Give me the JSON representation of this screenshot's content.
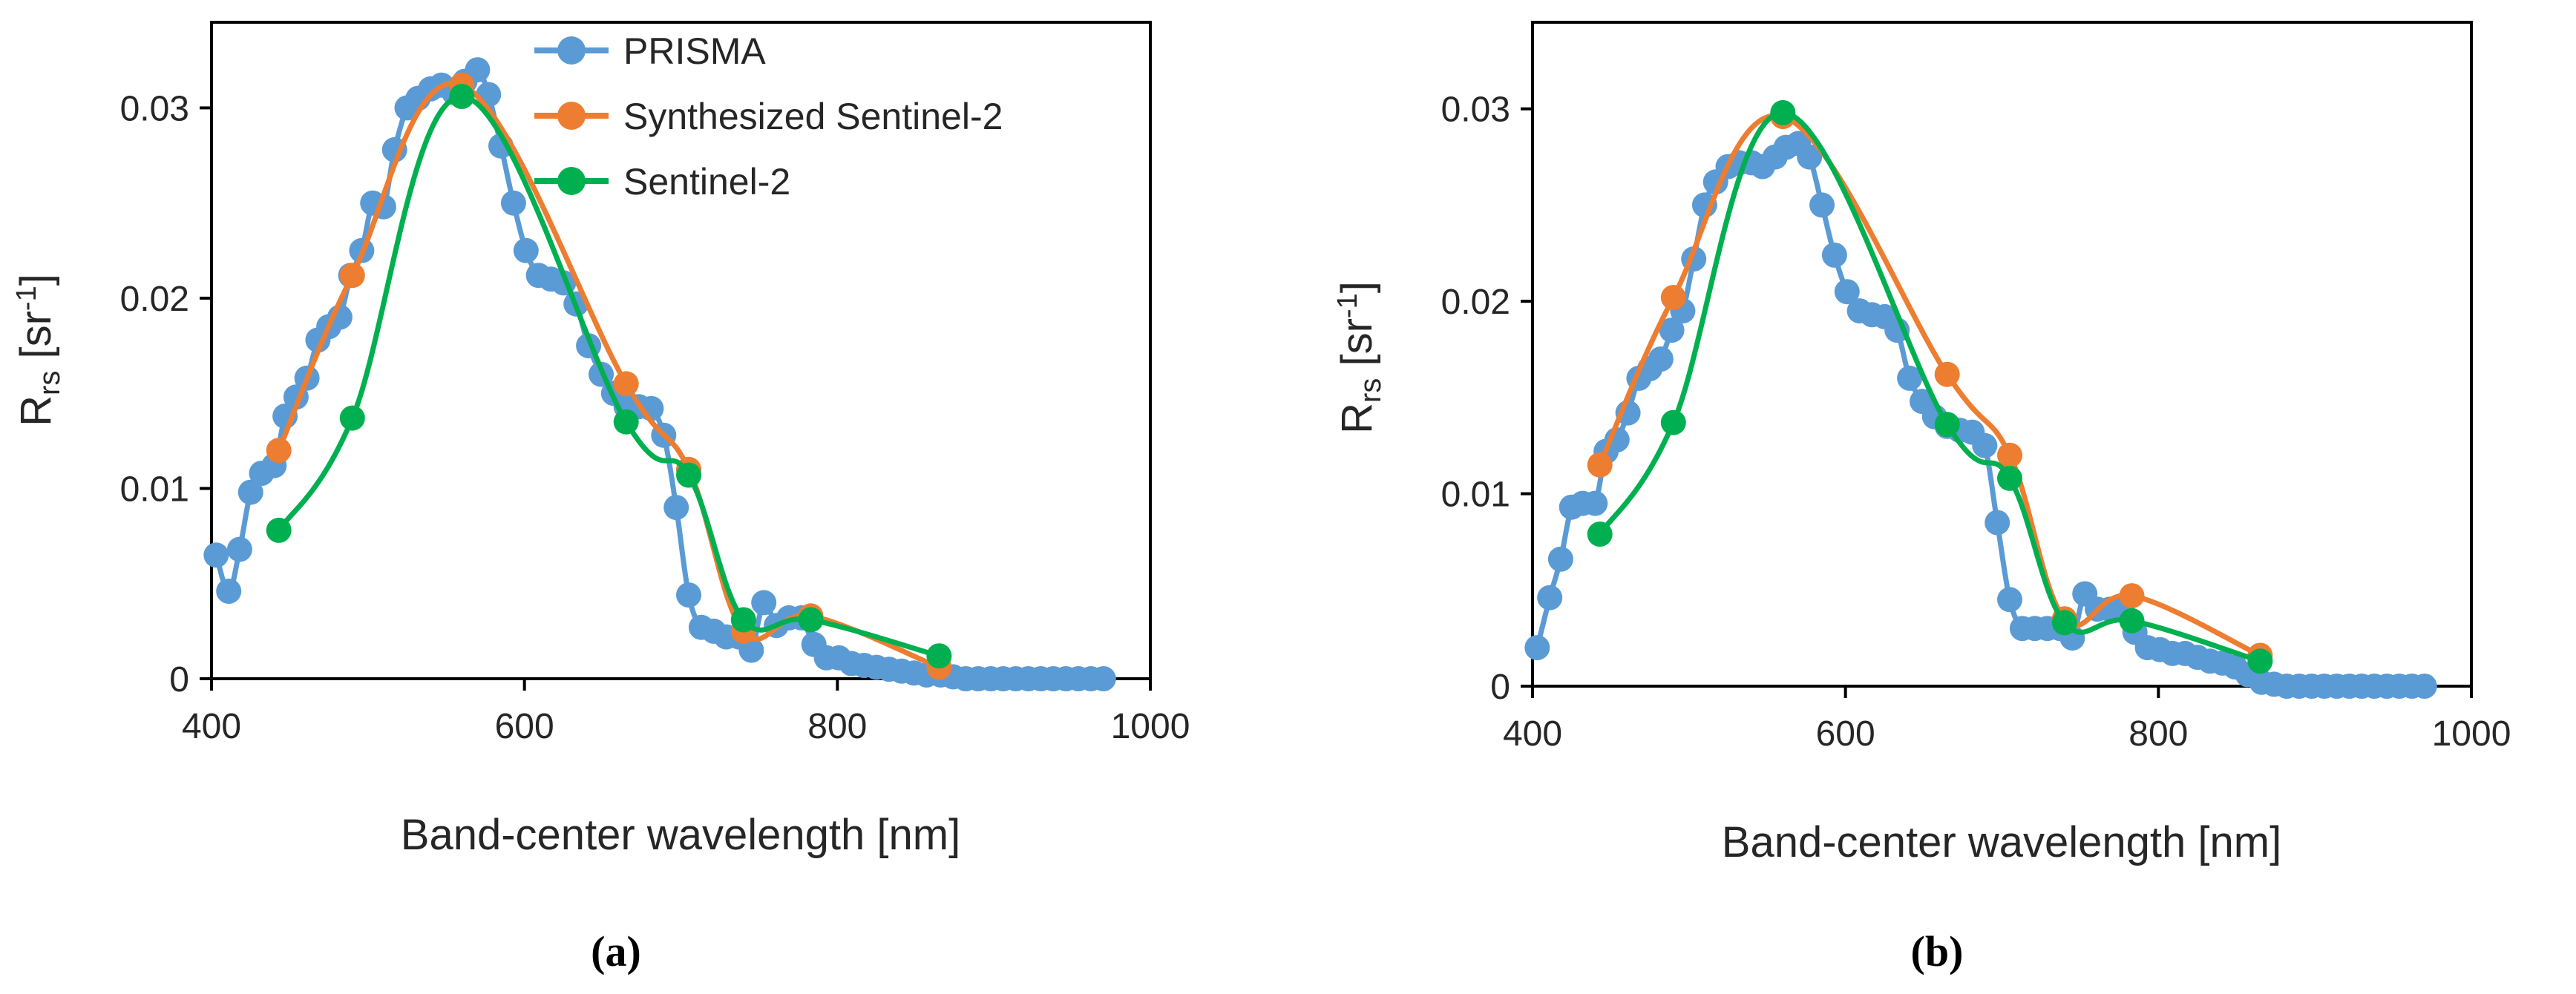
{
  "colors": {
    "prisma": "#5B9BD5",
    "synth": "#ED7D31",
    "s2": "#00B050"
  },
  "legend": {
    "prisma": "PRISMA",
    "synth": "Synthesized Sentinel-2",
    "s2": "Sentinel-2"
  },
  "chart_data": [
    {
      "type": "line",
      "panel": "a",
      "caption": "(a)",
      "xlabel": "Band-center wavelength [nm]",
      "ylabel": {
        "main": "R",
        "sub": "rs",
        "unit_open": " [sr",
        "sup": "-1",
        "unit_close": "]"
      },
      "xlim": [
        400,
        1000
      ],
      "ylim": [
        0,
        0.0345
      ],
      "xticks": [
        400,
        600,
        800,
        1000
      ],
      "yticks": [
        0,
        0.01,
        0.02,
        0.03
      ],
      "ytick_labels": [
        "0",
        "0.01",
        "0.02",
        "0.03"
      ],
      "legend_position": "top-center",
      "series": [
        {
          "name": "PRISMA",
          "key": "prisma",
          "x": [
            403,
            411,
            418,
            425,
            432,
            440,
            447,
            454,
            461,
            468,
            475,
            482,
            489,
            496,
            503,
            510,
            517,
            525,
            532,
            540,
            547,
            555,
            562,
            570,
            577,
            585,
            593,
            601,
            609,
            617,
            625,
            633,
            641,
            649,
            657,
            665,
            673,
            681,
            689,
            697,
            705,
            713,
            721,
            729,
            737,
            745,
            753,
            761,
            769,
            777,
            785,
            793,
            801,
            809,
            817,
            825,
            833,
            841,
            849,
            857,
            866,
            874,
            882,
            890,
            898,
            906,
            914,
            922,
            930,
            938,
            946,
            954,
            962,
            970
          ],
          "y": [
            0.0065,
            0.0046,
            0.0068,
            0.0098,
            0.0108,
            0.0112,
            0.0138,
            0.0148,
            0.0158,
            0.0178,
            0.0185,
            0.019,
            0.0212,
            0.0225,
            0.025,
            0.0248,
            0.0278,
            0.03,
            0.0305,
            0.031,
            0.0312,
            0.0308,
            0.0314,
            0.032,
            0.0307,
            0.028,
            0.025,
            0.0225,
            0.0212,
            0.021,
            0.0208,
            0.0197,
            0.0175,
            0.016,
            0.015,
            0.0143,
            0.0143,
            0.0142,
            0.0128,
            0.009,
            0.0044,
            0.0027,
            0.0025,
            0.0022,
            0.0022,
            0.0015,
            0.004,
            0.0028,
            0.0032,
            0.0032,
            0.0018,
            0.0011,
            0.0011,
            0.0008,
            0.0007,
            0.0006,
            0.0005,
            0.0004,
            0.0003,
            0.0002,
            0.0002,
            0.0001,
            0,
            0,
            0,
            0,
            0,
            0,
            0,
            0,
            0,
            0,
            0,
            0
          ]
        },
        {
          "name": "Synthesized Sentinel-2",
          "key": "synth",
          "x": [
            443,
            490,
            560,
            665,
            705,
            740,
            783,
            865
          ],
          "y": [
            0.012,
            0.0212,
            0.0312,
            0.0155,
            0.011,
            0.0025,
            0.0033,
            0.0006
          ]
        },
        {
          "name": "Sentinel-2",
          "key": "s2",
          "x": [
            443,
            490,
            560,
            665,
            705,
            740,
            783,
            865
          ],
          "y": [
            0.0078,
            0.0137,
            0.0306,
            0.0135,
            0.0107,
            0.0031,
            0.0031,
            0.0012
          ]
        }
      ]
    },
    {
      "type": "line",
      "panel": "b",
      "caption": "(b)",
      "xlabel": "Band-center wavelength [nm]",
      "ylabel": {
        "main": "R",
        "sub": "rs",
        "unit_open": " [sr",
        "sup": "-1",
        "unit_close": "]"
      },
      "xlim": [
        400,
        1000
      ],
      "ylim": [
        0,
        0.0345
      ],
      "xticks": [
        400,
        600,
        800,
        1000
      ],
      "yticks": [
        0,
        0.01,
        0.02,
        0.03
      ],
      "ytick_labels": [
        "0",
        "0.01",
        "0.02",
        "0.03"
      ],
      "series": [
        {
          "name": "PRISMA",
          "key": "prisma",
          "x": [
            403,
            411,
            418,
            425,
            432,
            440,
            447,
            454,
            461,
            468,
            475,
            482,
            489,
            496,
            503,
            510,
            517,
            525,
            532,
            540,
            547,
            555,
            562,
            570,
            577,
            585,
            593,
            601,
            609,
            617,
            625,
            633,
            641,
            649,
            657,
            665,
            673,
            681,
            689,
            697,
            705,
            713,
            721,
            729,
            737,
            745,
            753,
            761,
            769,
            777,
            785,
            793,
            801,
            809,
            817,
            825,
            833,
            841,
            849,
            857,
            866,
            874,
            882,
            890,
            898,
            906,
            914,
            922,
            930,
            938,
            946,
            954,
            962,
            970
          ],
          "y": [
            0.002,
            0.0046,
            0.0066,
            0.0093,
            0.0095,
            0.0095,
            0.0122,
            0.0128,
            0.0142,
            0.016,
            0.0165,
            0.017,
            0.0185,
            0.0195,
            0.0222,
            0.025,
            0.0262,
            0.027,
            0.0272,
            0.0272,
            0.027,
            0.0275,
            0.028,
            0.0282,
            0.0275,
            0.025,
            0.0224,
            0.0205,
            0.0195,
            0.0193,
            0.0192,
            0.0185,
            0.016,
            0.0148,
            0.014,
            0.0135,
            0.0133,
            0.0132,
            0.0125,
            0.0085,
            0.0045,
            0.003,
            0.003,
            0.003,
            0.003,
            0.0025,
            0.0048,
            0.004,
            0.004,
            0.004,
            0.0028,
            0.002,
            0.0019,
            0.0017,
            0.0017,
            0.0015,
            0.0013,
            0.0012,
            0.001,
            0.0006,
            0.0002,
            0.0001,
            0,
            0,
            0,
            0,
            0,
            0,
            0,
            0,
            0,
            0,
            0,
            0
          ]
        },
        {
          "name": "Synthesized Sentinel-2",
          "key": "synth",
          "x": [
            443,
            490,
            560,
            665,
            705,
            740,
            783,
            865
          ],
          "y": [
            0.0115,
            0.0202,
            0.0296,
            0.0162,
            0.012,
            0.0035,
            0.0047,
            0.0016
          ]
        },
        {
          "name": "Sentinel-2",
          "key": "s2",
          "x": [
            443,
            490,
            560,
            665,
            705,
            740,
            783,
            865
          ],
          "y": [
            0.0079,
            0.0137,
            0.0298,
            0.0136,
            0.0108,
            0.0033,
            0.0034,
            0.0013
          ]
        }
      ]
    }
  ]
}
